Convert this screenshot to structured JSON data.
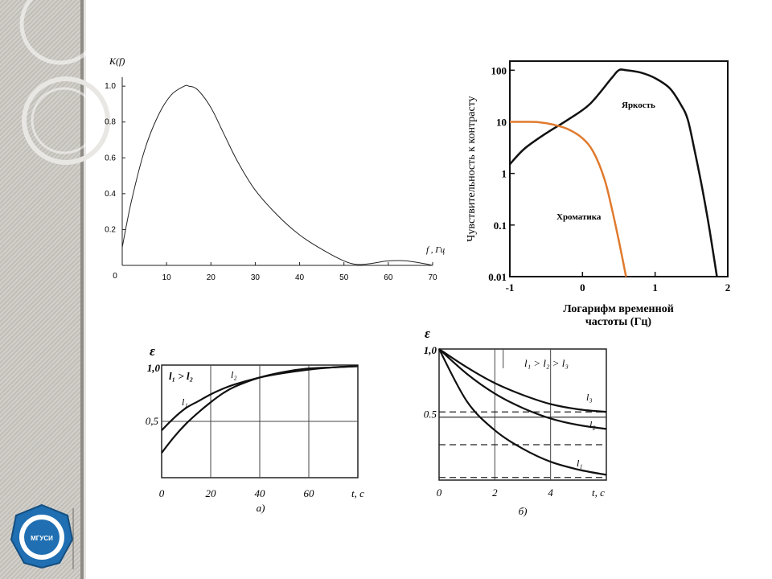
{
  "slide": {
    "logo_text": "МГУСИ",
    "colors": {
      "sidebar": "#c9c6c0",
      "logo_blue": "#1f6fb2",
      "orange": "#e07a2e"
    }
  },
  "chart_data": [
    {
      "id": "a",
      "type": "line",
      "title": "",
      "ylabel": "K(f)",
      "xlabel": "f , Гц",
      "xlim": [
        0,
        70
      ],
      "ylim": [
        0,
        1.05
      ],
      "x_ticks": [
        "10",
        "20",
        "30",
        "40",
        "50",
        "60",
        "70"
      ],
      "y_ticks": [
        "0.2",
        "0.4",
        "0.6",
        "0.8",
        "1.0"
      ],
      "origin_label": "0",
      "grid": false,
      "series": [
        {
          "x": [
            0,
            2,
            5,
            8,
            11,
            14,
            15,
            17,
            20,
            23,
            26,
            30,
            35,
            40,
            45,
            50,
            53,
            56,
            60,
            64,
            68,
            70
          ],
          "values": [
            0.1,
            0.35,
            0.64,
            0.83,
            0.95,
            1.0,
            1.0,
            0.98,
            0.88,
            0.73,
            0.58,
            0.42,
            0.28,
            0.17,
            0.09,
            0.025,
            0.005,
            0.01,
            0.025,
            0.025,
            0.01,
            0.0
          ]
        }
      ]
    },
    {
      "id": "b",
      "type": "line",
      "title": "",
      "ylabel": "Чувствительность к контрасту",
      "xlabel": "Логарифм временной частоты (Гц)",
      "xlim": [
        -1,
        2
      ],
      "ylim": [
        0.01,
        150
      ],
      "y_scale": "log",
      "x_ticks": [
        "-1",
        "0",
        "1",
        "2"
      ],
      "y_ticks": [
        "0.01",
        "0.1",
        "1",
        "10",
        "100"
      ],
      "grid": false,
      "series": [
        {
          "name": "Яркость",
          "x": [
            -1,
            -0.8,
            -0.5,
            -0.2,
            0.1,
            0.4,
            0.5,
            0.6,
            0.8,
            1.0,
            1.2,
            1.35,
            1.45,
            1.55,
            1.65,
            1.75,
            1.85
          ],
          "values": [
            1.5,
            3,
            6,
            11,
            22,
            70,
            100,
            100,
            90,
            70,
            45,
            22,
            11,
            2.5,
            0.5,
            0.08,
            0.01
          ]
        },
        {
          "name": "Хроматика",
          "x": [
            -1,
            -0.8,
            -0.6,
            -0.4,
            -0.2,
            0,
            0.15,
            0.3,
            0.4,
            0.5,
            0.6
          ],
          "values": [
            10,
            10,
            9.8,
            8.8,
            7.2,
            4.8,
            2.6,
            0.8,
            0.22,
            0.05,
            0.01
          ]
        }
      ]
    },
    {
      "id": "c",
      "type": "line",
      "title": "",
      "ylabel": "ε",
      "xlabel": "t, c",
      "caption": "а)",
      "legend_note": "l₁ > l₂",
      "xlim": [
        0,
        80
      ],
      "ylim": [
        0,
        1.0
      ],
      "x_ticks": [
        "0",
        "20",
        "40",
        "60",
        "t, c"
      ],
      "y_ticks": [
        "0,5",
        "1,0"
      ],
      "grid": true,
      "series": [
        {
          "name": "l₁",
          "x": [
            0,
            5,
            10,
            15,
            20,
            25,
            30,
            40,
            50,
            60,
            70,
            80
          ],
          "values": [
            0.42,
            0.53,
            0.62,
            0.68,
            0.74,
            0.79,
            0.83,
            0.89,
            0.93,
            0.96,
            0.98,
            0.99
          ]
        },
        {
          "name": "l₂",
          "x": [
            0,
            5,
            10,
            15,
            20,
            25,
            30,
            40,
            50,
            60,
            70,
            80
          ],
          "values": [
            0.22,
            0.36,
            0.48,
            0.58,
            0.67,
            0.75,
            0.81,
            0.89,
            0.94,
            0.97,
            0.98,
            0.99
          ]
        }
      ]
    },
    {
      "id": "d",
      "type": "line",
      "title": "",
      "ylabel": "ε",
      "xlabel": "t, c",
      "caption": "б)",
      "legend_note": "l₁ > l₂ > l₃",
      "xlim": [
        0,
        6
      ],
      "ylim": [
        0,
        1.0
      ],
      "x_ticks": [
        "0",
        "2",
        "4",
        "t, c"
      ],
      "y_ticks": [
        "0.5",
        "1,0"
      ],
      "grid": true,
      "series": [
        {
          "name": "l₃",
          "x": [
            0,
            1,
            2,
            3,
            4,
            5,
            6
          ],
          "values": [
            1.0,
            0.86,
            0.74,
            0.65,
            0.58,
            0.54,
            0.52
          ]
        },
        {
          "name": "l₂",
          "x": [
            0,
            1,
            2,
            3,
            4,
            5,
            6
          ],
          "values": [
            1.0,
            0.81,
            0.66,
            0.55,
            0.47,
            0.42,
            0.39
          ]
        },
        {
          "name": "l₁",
          "x": [
            0,
            1,
            2,
            3,
            4,
            5,
            6
          ],
          "values": [
            1.0,
            0.6,
            0.38,
            0.24,
            0.14,
            0.08,
            0.04
          ]
        }
      ],
      "dashed_levels": [
        0.52,
        0.27,
        0.02
      ]
    }
  ]
}
